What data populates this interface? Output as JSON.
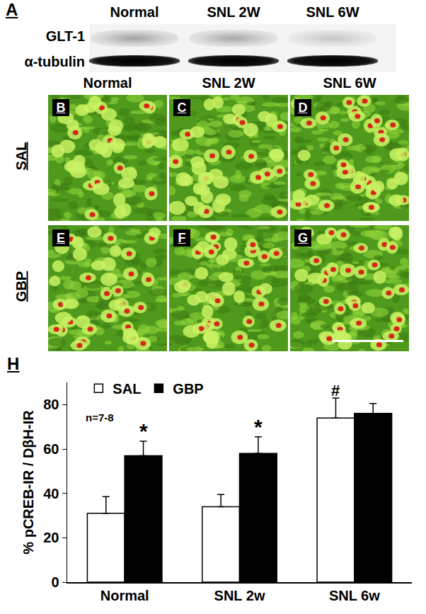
{
  "panel_a": {
    "label": "A",
    "columns": [
      "Normal",
      "SNL 2W",
      "SNL 6W"
    ],
    "rows": [
      "GLT-1",
      "α-tubulin"
    ]
  },
  "panels_bg": {
    "columns": [
      "Normal",
      "SNL 2W",
      "SNL 6W"
    ],
    "rows": [
      {
        "label": "SAL",
        "panels": [
          "B",
          "C",
          "D"
        ]
      },
      {
        "label": "GBP",
        "panels": [
          "E",
          "F",
          "G"
        ]
      }
    ]
  },
  "panel_h": {
    "label": "H"
  },
  "chart_data": {
    "type": "bar",
    "categories": [
      "Normal",
      "SNL 2w",
      "SNL 6w"
    ],
    "series": [
      {
        "name": "SAL",
        "color": "#ffffff",
        "values": [
          31,
          34,
          74
        ],
        "errors": [
          7.5,
          5.5,
          9
        ]
      },
      {
        "name": "GBP",
        "color": "#000000",
        "values": [
          57,
          58,
          76
        ],
        "errors": [
          6.5,
          7.5,
          4.5
        ]
      }
    ],
    "y_label": "% pCREB-IR / DβH-IR",
    "ylim": [
      0,
      90
    ],
    "yticks": [
      0,
      20,
      40,
      60,
      80
    ],
    "grid": false,
    "legend": "top left",
    "annotations": [
      {
        "text": "n=7-8"
      },
      {
        "text": "*",
        "category": "Normal",
        "series": "GBP"
      },
      {
        "text": "*",
        "category": "SNL 2w",
        "series": "GBP"
      },
      {
        "text": "#",
        "category": "SNL 6w",
        "series": "SAL"
      }
    ]
  }
}
